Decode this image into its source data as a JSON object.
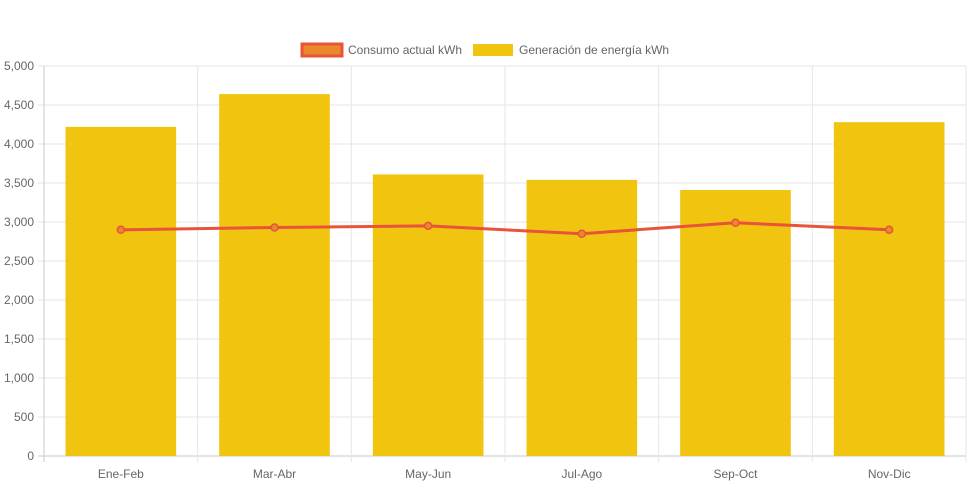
{
  "chart_data": {
    "type": "bar",
    "categories": [
      "Ene-Feb",
      "Mar-Abr",
      "May-Jun",
      "Jul-Ago",
      "Sep-Oct",
      "Nov-Dic"
    ],
    "series": [
      {
        "name": "Consumo actual kWh",
        "type": "line",
        "values": [
          2900,
          2930,
          2950,
          2850,
          2990,
          2900
        ],
        "color": "#e8533a",
        "fill": "#e8892b"
      },
      {
        "name": "Generación de energía kWh",
        "type": "bar",
        "values": [
          4220,
          4640,
          3610,
          3540,
          3410,
          4280
        ],
        "color": "#f1c40f"
      }
    ],
    "ylim": [
      0,
      5000
    ],
    "yticks": [
      "0",
      "500",
      "1,000",
      "1,500",
      "2,000",
      "2,500",
      "3,000",
      "3,500",
      "4,000",
      "4,500",
      "5,000"
    ],
    "ytick_values": [
      0,
      500,
      1000,
      1500,
      2000,
      2500,
      3000,
      3500,
      4000,
      4500,
      5000
    ],
    "title": "",
    "xlabel": "",
    "ylabel": "",
    "grid": true,
    "legend": "top-center"
  }
}
